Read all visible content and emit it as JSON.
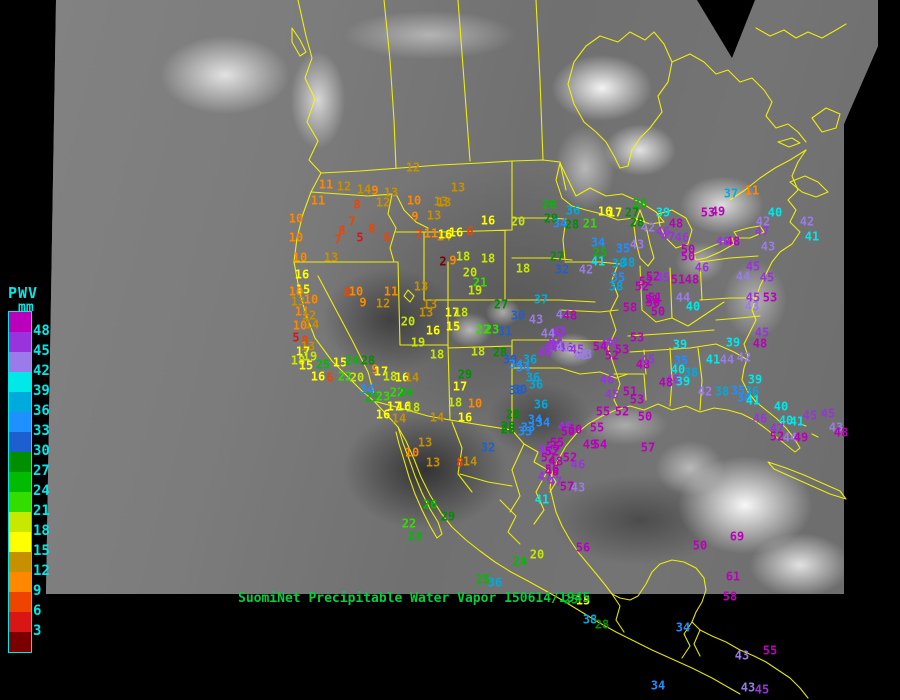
{
  "colorbar": {
    "title": "PWV",
    "units": "mm",
    "tick_labels": [
      48,
      45,
      42,
      39,
      36,
      33,
      30,
      27,
      24,
      21,
      18,
      15,
      12,
      9,
      6,
      3
    ],
    "tick_color": "#00e8e8",
    "border_color": "#00e8e8"
  },
  "scale": {
    "thresholds": [
      3,
      6,
      9,
      12,
      15,
      18,
      21,
      24,
      27,
      30,
      33,
      36,
      39,
      42,
      45,
      48
    ],
    "colors": [
      "#7a0000",
      "#d81616",
      "#ee4400",
      "#ff8800",
      "#c79000",
      "#ffff00",
      "#c8e800",
      "#33dd00",
      "#00bb00",
      "#008f00",
      "#1e5fd0",
      "#1e90ff",
      "#00aadd",
      "#00e8e8",
      "#9b7bea",
      "#9933dd",
      "#bb00bb"
    ]
  },
  "caption": {
    "text": "SuomiNet Precipitable Water Vapor 150614/1945",
    "color": "#00d040"
  },
  "map": {
    "outline_color": "#f8f800"
  },
  "stations": [
    [
      413,
      168,
      12
    ],
    [
      326,
      185,
      11
    ],
    [
      344,
      187,
      12
    ],
    [
      364,
      190,
      14
    ],
    [
      375,
      191,
      9
    ],
    [
      391,
      193,
      13
    ],
    [
      458,
      188,
      13
    ],
    [
      318,
      201,
      11
    ],
    [
      357,
      205,
      8
    ],
    [
      383,
      203,
      12
    ],
    [
      414,
      201,
      10
    ],
    [
      444,
      203,
      13
    ],
    [
      296,
      219,
      10
    ],
    [
      415,
      217,
      9
    ],
    [
      434,
      216,
      13
    ],
    [
      352,
      222,
      7
    ],
    [
      342,
      231,
      8
    ],
    [
      372,
      229,
      8
    ],
    [
      338,
      240,
      7
    ],
    [
      360,
      238,
      5
    ],
    [
      387,
      238,
      6
    ],
    [
      419,
      235,
      7
    ],
    [
      431,
      234,
      11
    ],
    [
      444,
      237,
      14
    ],
    [
      456,
      233,
      16
    ],
    [
      470,
      232,
      6
    ],
    [
      296,
      238,
      10
    ],
    [
      300,
      258,
      10
    ],
    [
      331,
      258,
      13
    ],
    [
      302,
      275,
      16
    ],
    [
      443,
      262,
      2
    ],
    [
      453,
      261,
      9
    ],
    [
      523,
      269,
      18
    ],
    [
      441,
      202,
      13
    ],
    [
      488,
      221,
      16
    ],
    [
      518,
      222,
      20
    ],
    [
      463,
      257,
      18
    ],
    [
      488,
      259,
      18
    ],
    [
      470,
      273,
      20
    ],
    [
      480,
      283,
      21
    ],
    [
      475,
      291,
      19
    ],
    [
      445,
      235,
      16
    ],
    [
      303,
      290,
      15
    ],
    [
      296,
      292,
      10
    ],
    [
      298,
      302,
      13
    ],
    [
      311,
      300,
      10
    ],
    [
      347,
      293,
      8
    ],
    [
      356,
      292,
      10
    ],
    [
      363,
      303,
      9
    ],
    [
      383,
      304,
      12
    ],
    [
      391,
      292,
      11
    ],
    [
      421,
      287,
      13
    ],
    [
      302,
      312,
      11
    ],
    [
      309,
      316,
      12
    ],
    [
      300,
      326,
      10
    ],
    [
      312,
      325,
      14
    ],
    [
      296,
      338,
      5
    ],
    [
      305,
      341,
      8
    ],
    [
      308,
      347,
      13
    ],
    [
      303,
      352,
      17
    ],
    [
      310,
      357,
      19
    ],
    [
      298,
      361,
      18
    ],
    [
      306,
      366,
      15
    ],
    [
      323,
      365,
      25
    ],
    [
      340,
      363,
      15
    ],
    [
      352,
      361,
      24
    ],
    [
      368,
      361,
      28
    ],
    [
      345,
      377,
      22
    ],
    [
      357,
      378,
      20
    ],
    [
      318,
      377,
      16
    ],
    [
      330,
      378,
      6
    ],
    [
      375,
      370,
      9
    ],
    [
      381,
      372,
      17
    ],
    [
      390,
      377,
      18
    ],
    [
      402,
      378,
      16
    ],
    [
      412,
      378,
      14
    ],
    [
      367,
      390,
      34
    ],
    [
      397,
      393,
      22
    ],
    [
      406,
      393,
      24
    ],
    [
      372,
      398,
      25
    ],
    [
      383,
      397,
      23
    ],
    [
      394,
      407,
      17
    ],
    [
      404,
      407,
      16
    ],
    [
      413,
      408,
      18
    ],
    [
      383,
      415,
      16
    ],
    [
      399,
      419,
      14
    ],
    [
      408,
      322,
      20
    ],
    [
      433,
      331,
      16
    ],
    [
      453,
      327,
      15
    ],
    [
      452,
      313,
      17
    ],
    [
      461,
      313,
      18
    ],
    [
      430,
      305,
      13
    ],
    [
      426,
      313,
      13
    ],
    [
      418,
      343,
      19
    ],
    [
      437,
      355,
      18
    ],
    [
      478,
      352,
      18
    ],
    [
      460,
      387,
      17
    ],
    [
      455,
      403,
      18
    ],
    [
      475,
      404,
      10
    ],
    [
      437,
      418,
      14
    ],
    [
      465,
      418,
      16
    ],
    [
      483,
      330,
      22
    ],
    [
      492,
      330,
      23
    ],
    [
      505,
      332,
      31
    ],
    [
      501,
      305,
      27
    ],
    [
      518,
      316,
      30
    ],
    [
      541,
      300,
      37
    ],
    [
      536,
      320,
      43
    ],
    [
      563,
      315,
      44
    ],
    [
      570,
      316,
      48
    ],
    [
      560,
      333,
      45
    ],
    [
      556,
      340,
      47
    ],
    [
      558,
      348,
      46
    ],
    [
      465,
      375,
      29
    ],
    [
      500,
      353,
      28
    ],
    [
      510,
      360,
      30
    ],
    [
      516,
      365,
      34
    ],
    [
      530,
      360,
      36
    ],
    [
      523,
      368,
      34
    ],
    [
      533,
      378,
      36
    ],
    [
      516,
      391,
      30
    ],
    [
      541,
      405,
      36
    ],
    [
      513,
      415,
      28
    ],
    [
      535,
      420,
      34
    ],
    [
      508,
      427,
      28
    ],
    [
      528,
      428,
      33
    ],
    [
      558,
      332,
      47
    ],
    [
      551,
      347,
      45
    ],
    [
      566,
      348,
      46
    ],
    [
      581,
      356,
      43
    ],
    [
      607,
      345,
      47
    ],
    [
      622,
      350,
      53
    ],
    [
      612,
      356,
      52
    ],
    [
      643,
      365,
      48
    ],
    [
      673,
      380,
      46
    ],
    [
      658,
      312,
      50
    ],
    [
      630,
      308,
      58
    ],
    [
      646,
      282,
      52
    ],
    [
      652,
      300,
      51
    ],
    [
      549,
      205,
      26
    ],
    [
      551,
      219,
      29
    ],
    [
      560,
      224,
      34
    ],
    [
      572,
      225,
      28
    ],
    [
      590,
      224,
      21
    ],
    [
      605,
      212,
      16
    ],
    [
      615,
      213,
      17
    ],
    [
      573,
      211,
      36
    ],
    [
      598,
      243,
      34
    ],
    [
      600,
      253,
      25
    ],
    [
      557,
      257,
      27
    ],
    [
      598,
      262,
      41
    ],
    [
      619,
      264,
      38
    ],
    [
      562,
      270,
      32
    ],
    [
      586,
      270,
      42
    ],
    [
      623,
      249,
      35
    ],
    [
      628,
      263,
      38
    ],
    [
      637,
      245,
      43
    ],
    [
      731,
      194,
      37
    ],
    [
      663,
      213,
      39
    ],
    [
      640,
      204,
      26
    ],
    [
      632,
      213,
      27
    ],
    [
      637,
      223,
      28
    ],
    [
      648,
      228,
      42
    ],
    [
      676,
      224,
      48
    ],
    [
      668,
      237,
      47
    ],
    [
      682,
      238,
      46
    ],
    [
      708,
      213,
      53
    ],
    [
      718,
      212,
      49
    ],
    [
      663,
      232,
      46
    ],
    [
      688,
      250,
      50
    ],
    [
      775,
      213,
      40
    ],
    [
      763,
      222,
      42
    ],
    [
      762,
      232,
      47
    ],
    [
      733,
      242,
      48
    ],
    [
      723,
      242,
      46
    ],
    [
      752,
      191,
      11
    ],
    [
      807,
      222,
      42
    ],
    [
      812,
      237,
      41
    ],
    [
      753,
      267,
      45
    ],
    [
      768,
      247,
      43
    ],
    [
      743,
      277,
      44
    ],
    [
      767,
      278,
      45
    ],
    [
      770,
      298,
      53
    ],
    [
      753,
      298,
      45
    ],
    [
      752,
      307,
      43
    ],
    [
      688,
      257,
      50
    ],
    [
      702,
      268,
      46
    ],
    [
      653,
      277,
      52
    ],
    [
      663,
      278,
      45
    ],
    [
      678,
      280,
      51
    ],
    [
      692,
      280,
      48
    ],
    [
      642,
      287,
      52
    ],
    [
      655,
      298,
      51
    ],
    [
      653,
      303,
      50
    ],
    [
      683,
      298,
      44
    ],
    [
      693,
      307,
      40
    ],
    [
      618,
      278,
      35
    ],
    [
      616,
      287,
      38
    ],
    [
      680,
      345,
      39
    ],
    [
      678,
      370,
      40
    ],
    [
      691,
      373,
      38
    ],
    [
      683,
      382,
      39
    ],
    [
      666,
      383,
      48
    ],
    [
      681,
      361,
      35
    ],
    [
      713,
      360,
      41
    ],
    [
      727,
      360,
      44
    ],
    [
      744,
      358,
      42
    ],
    [
      705,
      392,
      42
    ],
    [
      722,
      392,
      38
    ],
    [
      738,
      391,
      35
    ],
    [
      752,
      392,
      36
    ],
    [
      744,
      398,
      34
    ],
    [
      753,
      401,
      41
    ],
    [
      755,
      380,
      39
    ],
    [
      733,
      343,
      39
    ],
    [
      762,
      333,
      45
    ],
    [
      760,
      344,
      48
    ],
    [
      781,
      407,
      40
    ],
    [
      786,
      421,
      40
    ],
    [
      797,
      422,
      41
    ],
    [
      810,
      416,
      45
    ],
    [
      777,
      429,
      47
    ],
    [
      760,
      419,
      46
    ],
    [
      777,
      437,
      52
    ],
    [
      790,
      438,
      44
    ],
    [
      801,
      438,
      49
    ],
    [
      836,
      428,
      43
    ],
    [
      828,
      414,
      45
    ],
    [
      841,
      433,
      48
    ],
    [
      548,
      334,
      44
    ],
    [
      556,
      345,
      45
    ],
    [
      563,
      348,
      43
    ],
    [
      545,
      353,
      46
    ],
    [
      612,
      343,
      47
    ],
    [
      637,
      338,
      53
    ],
    [
      577,
      350,
      45
    ],
    [
      585,
      355,
      43
    ],
    [
      600,
      347,
      54
    ],
    [
      607,
      380,
      46
    ],
    [
      612,
      395,
      45
    ],
    [
      630,
      392,
      51
    ],
    [
      637,
      400,
      53
    ],
    [
      603,
      412,
      55
    ],
    [
      622,
      412,
      52
    ],
    [
      645,
      417,
      50
    ],
    [
      590,
      445,
      49
    ],
    [
      600,
      445,
      54
    ],
    [
      648,
      448,
      57
    ],
    [
      570,
      458,
      52
    ],
    [
      575,
      430,
      50
    ],
    [
      597,
      428,
      55
    ],
    [
      536,
      385,
      36
    ],
    [
      520,
      390,
      30
    ],
    [
      648,
      360,
      45
    ],
    [
      553,
      447,
      55
    ],
    [
      548,
      458,
      52
    ],
    [
      556,
      462,
      48
    ],
    [
      552,
      470,
      56
    ],
    [
      545,
      477,
      47
    ],
    [
      565,
      427,
      45
    ],
    [
      568,
      432,
      50
    ],
    [
      557,
      443,
      55
    ],
    [
      545,
      450,
      46
    ],
    [
      552,
      452,
      52
    ],
    [
      578,
      465,
      46
    ],
    [
      552,
      472,
      48
    ],
    [
      555,
      482,
      47
    ],
    [
      567,
      487,
      57
    ],
    [
      578,
      488,
      43
    ],
    [
      542,
      500,
      41
    ],
    [
      583,
      548,
      56
    ],
    [
      700,
      546,
      50
    ],
    [
      737,
      537,
      69
    ],
    [
      733,
      577,
      61
    ],
    [
      730,
      597,
      58
    ],
    [
      425,
      443,
      13
    ],
    [
      412,
      453,
      10
    ],
    [
      433,
      463,
      13
    ],
    [
      460,
      463,
      8
    ],
    [
      470,
      462,
      14
    ],
    [
      488,
      448,
      32
    ],
    [
      508,
      430,
      28
    ],
    [
      525,
      432,
      33
    ],
    [
      543,
      423,
      34
    ],
    [
      430,
      505,
      26
    ],
    [
      448,
      517,
      29
    ],
    [
      409,
      524,
      22
    ],
    [
      415,
      537,
      24
    ],
    [
      520,
      562,
      24
    ],
    [
      537,
      555,
      20
    ],
    [
      483,
      580,
      25
    ],
    [
      495,
      583,
      36
    ],
    [
      571,
      600,
      25
    ],
    [
      583,
      601,
      15
    ],
    [
      590,
      620,
      38
    ],
    [
      602,
      625,
      28
    ],
    [
      683,
      628,
      34
    ],
    [
      658,
      686,
      34
    ],
    [
      742,
      656,
      43
    ],
    [
      770,
      651,
      55
    ],
    [
      748,
      688,
      43
    ],
    [
      762,
      690,
      45
    ]
  ]
}
